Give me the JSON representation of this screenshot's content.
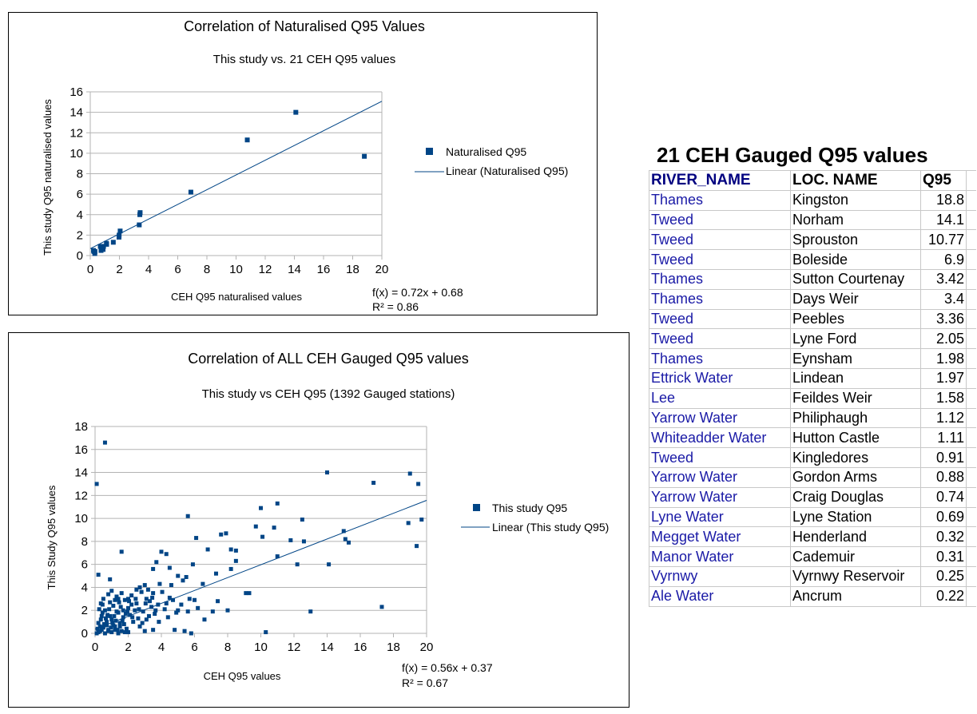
{
  "colors": {
    "series": "#004586",
    "axis": "#b3b3b3",
    "text": "#000000"
  },
  "charts": [
    {
      "title": "Correlation of Naturalised Q95 Values",
      "subtitle": "This study vs. 21 CEH Q95 values",
      "xlabel": "CEH Q95 naturalised values",
      "ylabel": "This study Q95 naturalised values",
      "legend_series": "Naturalised Q95",
      "legend_trend": "Linear (Naturalised Q95)",
      "equation": "f(x) = 0.72x + 0.68",
      "r2": "R² = 0.86"
    },
    {
      "title": "Correlation of ALL CEH Gauged Q95 values",
      "subtitle": "This study vs CEH Q95 (1392 Gauged stations)",
      "xlabel": "CEH Q95 values",
      "ylabel": "This Study Q95 values",
      "legend_series": "This study Q95",
      "legend_trend": "Linear (This study Q95)",
      "equation": "f(x) = 0.56x + 0.37",
      "r2": "R² = 0.67"
    }
  ],
  "chart_data": [
    {
      "type": "scatter",
      "title": "Correlation of Naturalised Q95 Values",
      "xlim": [
        0,
        20
      ],
      "ylim": [
        0,
        16
      ],
      "xticks": [
        "0",
        "2",
        "4",
        "6",
        "8",
        "10",
        "12",
        "14",
        "16",
        "18",
        "20"
      ],
      "yticks": [
        "0",
        "2",
        "4",
        "6",
        "8",
        "10",
        "12",
        "14",
        "16"
      ],
      "trend": {
        "slope": 0.72,
        "intercept": 0.68
      },
      "series": [
        {
          "name": "Naturalised Q95",
          "points": [
            [
              18.8,
              9.7
            ],
            [
              14.1,
              14.0
            ],
            [
              10.77,
              11.3
            ],
            [
              6.9,
              6.2
            ],
            [
              3.42,
              4.2
            ],
            [
              3.4,
              4.0
            ],
            [
              3.36,
              3.0
            ],
            [
              2.05,
              2.4
            ],
            [
              1.98,
              2.0
            ],
            [
              1.97,
              1.8
            ],
            [
              1.58,
              1.3
            ],
            [
              1.12,
              1.1
            ],
            [
              1.11,
              1.2
            ],
            [
              0.91,
              0.9
            ],
            [
              0.88,
              0.6
            ],
            [
              0.74,
              0.5
            ],
            [
              0.69,
              0.9
            ],
            [
              0.32,
              0.4
            ],
            [
              0.31,
              0.2
            ],
            [
              0.25,
              0.4
            ],
            [
              0.22,
              0.5
            ]
          ]
        }
      ]
    },
    {
      "type": "scatter",
      "title": "Correlation of ALL CEH Gauged Q95 values",
      "xlim": [
        0,
        20
      ],
      "ylim": [
        0,
        18
      ],
      "xticks": [
        "0",
        "2",
        "4",
        "6",
        "8",
        "10",
        "12",
        "14",
        "16",
        "18",
        "20"
      ],
      "yticks": [
        "0",
        "2",
        "4",
        "6",
        "8",
        "10",
        "12",
        "14",
        "16",
        "18"
      ],
      "trend": {
        "slope": 0.56,
        "intercept": 0.37
      },
      "series": [
        {
          "name": "This study Q95",
          "points": [
            [
              0.1,
              13.0
            ],
            [
              0.6,
              16.6
            ],
            [
              0.2,
              5.1
            ],
            [
              0.9,
              4.7
            ],
            [
              1.6,
              7.1
            ],
            [
              3.5,
              5.6
            ],
            [
              4.0,
              7.1
            ],
            [
              4.3,
              6.9
            ],
            [
              4.5,
              5.7
            ],
            [
              5.0,
              5.0
            ],
            [
              5.5,
              4.9
            ],
            [
              5.6,
              10.2
            ],
            [
              6.1,
              8.3
            ],
            [
              6.8,
              7.3
            ],
            [
              7.3,
              5.2
            ],
            [
              7.6,
              8.6
            ],
            [
              7.9,
              8.7
            ],
            [
              8.2,
              7.3
            ],
            [
              8.5,
              7.2
            ],
            [
              8.5,
              6.3
            ],
            [
              8.2,
              5.6
            ],
            [
              8.0,
              2.0
            ],
            [
              9.1,
              3.5
            ],
            [
              9.3,
              3.5
            ],
            [
              9.7,
              9.3
            ],
            [
              10.0,
              10.9
            ],
            [
              10.1,
              8.4
            ],
            [
              10.3,
              0.1
            ],
            [
              10.8,
              9.2
            ],
            [
              11.0,
              11.3
            ],
            [
              11.0,
              6.7
            ],
            [
              11.8,
              8.1
            ],
            [
              12.2,
              6.0
            ],
            [
              12.5,
              9.9
            ],
            [
              12.6,
              8.0
            ],
            [
              13.0,
              1.9
            ],
            [
              14.0,
              14.0
            ],
            [
              14.1,
              6.0
            ],
            [
              15.0,
              8.9
            ],
            [
              15.1,
              8.2
            ],
            [
              15.3,
              7.9
            ],
            [
              16.8,
              13.1
            ],
            [
              17.3,
              2.3
            ],
            [
              18.9,
              9.6
            ],
            [
              19.0,
              13.9
            ],
            [
              19.4,
              7.6
            ],
            [
              19.5,
              13.0
            ],
            [
              19.7,
              9.9
            ],
            [
              5.9,
              6.0
            ],
            [
              5.3,
              4.6
            ],
            [
              6.5,
              4.3
            ],
            [
              6.0,
              2.9
            ],
            [
              5.7,
              3.0
            ],
            [
              4.8,
              0.3
            ],
            [
              5.4,
              0.2
            ],
            [
              5.8,
              0.0
            ],
            [
              3.5,
              0.3
            ],
            [
              2.0,
              0.1
            ],
            [
              3.0,
              0.2
            ],
            [
              4.2,
              2.1
            ],
            [
              4.5,
              3.1
            ],
            [
              5.0,
              2.0
            ],
            [
              4.6,
              4.2
            ],
            [
              3.2,
              3.8
            ],
            [
              3.7,
              6.2
            ],
            [
              3.0,
              4.2
            ],
            [
              2.8,
              3.6
            ],
            [
              2.2,
              3.3
            ],
            [
              2.5,
              2.6
            ],
            [
              3.4,
              2.3
            ],
            [
              0.3,
              0.2
            ],
            [
              0.5,
              0.5
            ],
            [
              0.7,
              1.0
            ],
            [
              0.4,
              1.5
            ],
            [
              0.8,
              0.3
            ],
            [
              1.0,
              1.2
            ],
            [
              1.2,
              0.6
            ],
            [
              0.2,
              0.9
            ],
            [
              0.6,
              2.0
            ],
            [
              1.1,
              2.4
            ],
            [
              1.4,
              1.8
            ],
            [
              1.5,
              0.9
            ],
            [
              1.7,
              1.4
            ],
            [
              1.8,
              2.9
            ],
            [
              2.0,
              2.2
            ],
            [
              2.1,
              1.6
            ],
            [
              2.3,
              1.0
            ],
            [
              2.4,
              2.0
            ],
            [
              1.3,
              3.2
            ],
            [
              0.9,
              2.7
            ],
            [
              0.5,
              3.0
            ],
            [
              1.6,
              3.5
            ],
            [
              1.9,
              0.4
            ],
            [
              2.6,
              1.3
            ],
            [
              2.7,
              0.6
            ],
            [
              2.9,
              1.9
            ],
            [
              3.1,
              1.2
            ],
            [
              3.3,
              2.8
            ],
            [
              3.6,
              1.7
            ],
            [
              3.8,
              2.5
            ],
            [
              0.15,
              0.4
            ],
            [
              0.35,
              1.2
            ],
            [
              0.55,
              0.8
            ],
            [
              0.75,
              1.6
            ],
            [
              0.95,
              0.5
            ],
            [
              1.15,
              1.5
            ],
            [
              1.35,
              0.3
            ],
            [
              1.55,
              2.3
            ],
            [
              1.75,
              0.8
            ],
            [
              1.95,
              1.9
            ],
            [
              0.25,
              2.1
            ],
            [
              0.45,
              2.5
            ],
            [
              0.65,
              1.3
            ],
            [
              0.85,
              2.1
            ],
            [
              1.05,
              0.9
            ],
            [
              1.25,
              1.1
            ],
            [
              1.45,
              2.7
            ],
            [
              1.65,
              1.1
            ],
            [
              1.85,
              1.7
            ],
            [
              2.05,
              2.8
            ],
            [
              2.25,
              1.4
            ],
            [
              2.45,
              3.0
            ],
            [
              2.65,
              2.1
            ],
            [
              2.85,
              0.9
            ],
            [
              3.05,
              2.6
            ],
            [
              3.25,
              1.5
            ],
            [
              3.45,
              3.1
            ],
            [
              3.65,
              2.0
            ],
            [
              3.85,
              1.0
            ],
            [
              4.05,
              3.6
            ],
            [
              4.4,
              1.4
            ],
            [
              4.9,
              1.8
            ],
            [
              5.2,
              2.5
            ],
            [
              5.6,
              1.9
            ],
            [
              6.2,
              2.2
            ],
            [
              6.6,
              1.2
            ],
            [
              7.1,
              1.9
            ],
            [
              7.4,
              2.8
            ],
            [
              0.1,
              0.0
            ],
            [
              0.2,
              0.1
            ],
            [
              0.4,
              0.3
            ],
            [
              0.6,
              0.0
            ],
            [
              0.8,
              0.2
            ],
            [
              1.0,
              0.1
            ],
            [
              1.2,
              0.3
            ],
            [
              1.4,
              0.0
            ],
            [
              1.6,
              0.2
            ],
            [
              1.8,
              0.1
            ],
            [
              0.3,
              0.6
            ],
            [
              0.7,
              0.7
            ],
            [
              1.1,
              0.7
            ],
            [
              1.5,
              0.6
            ],
            [
              0.45,
              1.8
            ],
            [
              0.9,
              1.5
            ],
            [
              1.3,
              1.9
            ],
            [
              1.7,
              2.0
            ],
            [
              2.2,
              2.5
            ],
            [
              2.5,
              3.8
            ],
            [
              2.0,
              3.0
            ],
            [
              1.2,
              2.9
            ],
            [
              0.35,
              2.6
            ],
            [
              0.8,
              3.4
            ],
            [
              1.0,
              3.7
            ],
            [
              1.4,
              3.0
            ],
            [
              2.7,
              4.0
            ],
            [
              3.1,
              3.0
            ],
            [
              3.5,
              3.5
            ],
            [
              3.9,
              4.3
            ],
            [
              4.3,
              2.6
            ],
            [
              4.7,
              2.9
            ]
          ]
        }
      ]
    }
  ],
  "table": {
    "title": "21 CEH Gauged Q95 values",
    "headers": [
      "RIVER_NAME",
      "LOC. NAME",
      "Q95"
    ],
    "rows": [
      [
        "Thames",
        "Kingston",
        "18.8"
      ],
      [
        "Tweed",
        "Norham",
        "14.1"
      ],
      [
        "Tweed",
        "Sprouston",
        "10.77"
      ],
      [
        "Tweed",
        "Boleside",
        "6.9"
      ],
      [
        "Thames",
        "Sutton Courtenay",
        "3.42"
      ],
      [
        "Thames",
        "Days Weir",
        "3.4"
      ],
      [
        "Tweed",
        "Peebles",
        "3.36"
      ],
      [
        "Tweed",
        "Lyne Ford",
        "2.05"
      ],
      [
        "Thames",
        "Eynsham",
        "1.98"
      ],
      [
        "Ettrick Water",
        "Lindean",
        "1.97"
      ],
      [
        "Lee",
        "Feildes Weir",
        "1.58"
      ],
      [
        "Yarrow Water",
        "Philiphaugh",
        "1.12"
      ],
      [
        "Whiteadder Water",
        "Hutton Castle",
        "1.11"
      ],
      [
        "Tweed",
        "Kingledores",
        "0.91"
      ],
      [
        "Yarrow Water",
        "Gordon Arms",
        "0.88"
      ],
      [
        "Yarrow Water",
        "Craig Douglas",
        "0.74"
      ],
      [
        "Lyne Water",
        "Lyne Station",
        "0.69"
      ],
      [
        "Megget Water",
        "Henderland",
        "0.32"
      ],
      [
        "Manor Water",
        "Cademuir",
        "0.31"
      ],
      [
        "Vyrnwy",
        "Vyrnwy Reservoir",
        "0.25"
      ],
      [
        "Ale Water",
        "Ancrum",
        "0.22"
      ]
    ]
  }
}
